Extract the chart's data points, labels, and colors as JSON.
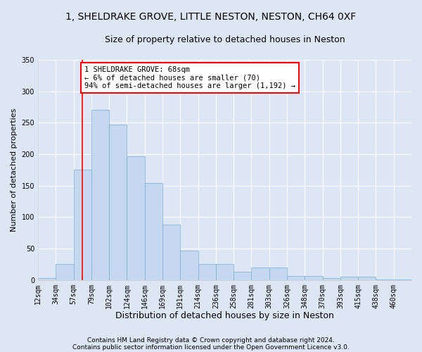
{
  "title1": "1, SHELDRAKE GROVE, LITTLE NESTON, NESTON, CH64 0XF",
  "title2": "Size of property relative to detached houses in Neston",
  "xlabel": "Distribution of detached houses by size in Neston",
  "ylabel": "Number of detached properties",
  "footnote1": "Contains HM Land Registry data © Crown copyright and database right 2024.",
  "footnote2": "Contains public sector information licensed under the Open Government Licence v3.0.",
  "bin_labels": [
    "12sqm",
    "34sqm",
    "57sqm",
    "79sqm",
    "102sqm",
    "124sqm",
    "146sqm",
    "169sqm",
    "191sqm",
    "214sqm",
    "236sqm",
    "258sqm",
    "281sqm",
    "303sqm",
    "326sqm",
    "348sqm",
    "370sqm",
    "393sqm",
    "415sqm",
    "438sqm",
    "460sqm"
  ],
  "bar_values": [
    3,
    25,
    175,
    270,
    247,
    197,
    154,
    88,
    47,
    25,
    25,
    13,
    20,
    20,
    6,
    6,
    3,
    5,
    5,
    1,
    1
  ],
  "bar_color": "#c5d8f0",
  "bar_edge_color": "#7aadd4",
  "property_line_color": "red",
  "annotation_text": "1 SHELDRAKE GROVE: 68sqm\n← 6% of detached houses are smaller (70)\n94% of semi-detached houses are larger (1,192) →",
  "annotation_box_color": "white",
  "annotation_box_edge_color": "red",
  "ylim": [
    0,
    350
  ],
  "yticks": [
    0,
    50,
    100,
    150,
    200,
    250,
    300,
    350
  ],
  "background_color": "#dce6f5",
  "plot_bg_color": "#dce6f5",
  "grid_color": "white",
  "title1_fontsize": 10,
  "title2_fontsize": 9,
  "xlabel_fontsize": 9,
  "ylabel_fontsize": 8,
  "tick_fontsize": 7,
  "footnote_fontsize": 6.5,
  "annotation_fontsize": 7.5
}
